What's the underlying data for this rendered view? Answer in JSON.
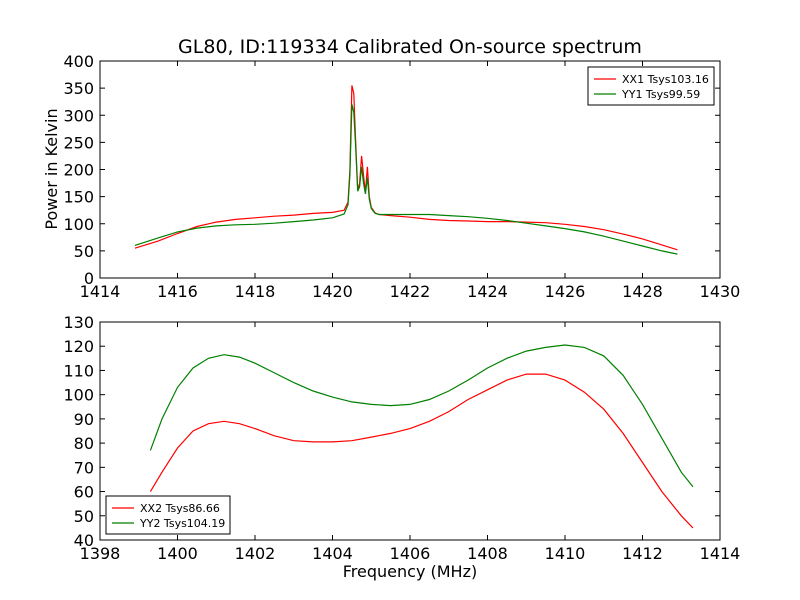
{
  "chart_data": [
    {
      "type": "line",
      "title": "GL80, ID:119334 Calibrated On-source spectrum",
      "xlabel": "",
      "ylabel": "Power in Kelvin",
      "xlim": [
        1414,
        1430
      ],
      "ylim": [
        0,
        400
      ],
      "xticks": [
        "1414",
        "1416",
        "1418",
        "1420",
        "1422",
        "1424",
        "1426",
        "1428",
        "1430"
      ],
      "yticks": [
        "0",
        "50",
        "100",
        "150",
        "200",
        "250",
        "300",
        "350",
        "400"
      ],
      "legend_position": "top-right",
      "series": [
        {
          "name": "XX1 Tsys103.16",
          "color": "#ff0000",
          "x": [
            1414.9,
            1415.5,
            1416.0,
            1416.5,
            1417.0,
            1417.5,
            1418.0,
            1418.5,
            1419.0,
            1419.5,
            1420.0,
            1420.3,
            1420.4,
            1420.45,
            1420.5,
            1420.55,
            1420.6,
            1420.65,
            1420.7,
            1420.75,
            1420.8,
            1420.85,
            1420.9,
            1420.95,
            1421.0,
            1421.1,
            1421.2,
            1421.5,
            1422.0,
            1422.5,
            1423.0,
            1423.5,
            1424.0,
            1424.5,
            1425.0,
            1425.5,
            1426.0,
            1426.5,
            1427.0,
            1427.5,
            1428.0,
            1428.5,
            1428.9
          ],
          "y": [
            55,
            68,
            82,
            95,
            103,
            108,
            111,
            114,
            116,
            119,
            121,
            125,
            140,
            200,
            355,
            340,
            250,
            162,
            175,
            225,
            190,
            158,
            205,
            150,
            130,
            120,
            117,
            115,
            112,
            108,
            106,
            105,
            104,
            104,
            103,
            102,
            99,
            95,
            89,
            81,
            72,
            61,
            52
          ]
        },
        {
          "name": "YY1 Tsys99.59",
          "color": "#008000",
          "x": [
            1414.9,
            1415.5,
            1416.0,
            1416.5,
            1417.0,
            1417.5,
            1418.0,
            1418.5,
            1419.0,
            1419.5,
            1420.0,
            1420.3,
            1420.4,
            1420.45,
            1420.5,
            1420.55,
            1420.6,
            1420.65,
            1420.7,
            1420.75,
            1420.8,
            1420.85,
            1420.9,
            1420.95,
            1421.0,
            1421.1,
            1421.2,
            1421.5,
            1422.0,
            1422.5,
            1423.0,
            1423.5,
            1424.0,
            1424.5,
            1425.0,
            1425.5,
            1426.0,
            1426.5,
            1427.0,
            1427.5,
            1428.0,
            1428.5,
            1428.9
          ],
          "y": [
            60,
            74,
            85,
            92,
            96,
            98,
            99,
            101,
            104,
            107,
            111,
            118,
            135,
            190,
            320,
            305,
            240,
            160,
            168,
            205,
            175,
            155,
            185,
            145,
            128,
            119,
            117,
            117,
            117,
            117,
            115,
            113,
            110,
            106,
            101,
            96,
            91,
            85,
            77,
            68,
            59,
            50,
            44
          ]
        }
      ]
    },
    {
      "type": "line",
      "title": "",
      "xlabel": "Frequency (MHz)",
      "ylabel": "",
      "xlim": [
        1398,
        1414
      ],
      "ylim": [
        40,
        130
      ],
      "xticks": [
        "1398",
        "1400",
        "1402",
        "1404",
        "1406",
        "1408",
        "1410",
        "1412",
        "1414"
      ],
      "yticks": [
        "40",
        "50",
        "60",
        "70",
        "80",
        "90",
        "100",
        "110",
        "120",
        "130"
      ],
      "legend_position": "bottom-left",
      "series": [
        {
          "name": "XX2 Tsys86.66",
          "color": "#ff0000",
          "x": [
            1399.3,
            1399.6,
            1400.0,
            1400.4,
            1400.8,
            1401.2,
            1401.6,
            1402.0,
            1402.5,
            1403.0,
            1403.5,
            1404.0,
            1404.5,
            1405.0,
            1405.5,
            1406.0,
            1406.5,
            1407.0,
            1407.5,
            1408.0,
            1408.5,
            1409.0,
            1409.5,
            1410.0,
            1410.5,
            1411.0,
            1411.5,
            1412.0,
            1412.5,
            1413.0,
            1413.3
          ],
          "y": [
            60,
            68,
            78,
            85,
            88,
            89,
            88,
            86,
            83,
            81,
            80.5,
            80.5,
            81,
            82.5,
            84,
            86,
            89,
            93,
            98,
            102,
            106,
            108.5,
            108.5,
            106,
            101,
            94,
            84,
            72,
            60,
            50,
            45
          ]
        },
        {
          "name": "YY2 Tsys104.19",
          "color": "#008000",
          "x": [
            1399.3,
            1399.6,
            1400.0,
            1400.4,
            1400.8,
            1401.2,
            1401.6,
            1402.0,
            1402.5,
            1403.0,
            1403.5,
            1404.0,
            1404.5,
            1405.0,
            1405.5,
            1406.0,
            1406.5,
            1407.0,
            1407.5,
            1408.0,
            1408.5,
            1409.0,
            1409.5,
            1410.0,
            1410.5,
            1411.0,
            1411.5,
            1412.0,
            1412.5,
            1413.0,
            1413.3
          ],
          "y": [
            77,
            90,
            103,
            111,
            115,
            116.5,
            115.5,
            113,
            109,
            105,
            101.5,
            99,
            97,
            96,
            95.5,
            96,
            98,
            101.5,
            106,
            111,
            115,
            118,
            119.5,
            120.5,
            119.5,
            116,
            108,
            96,
            82,
            68,
            62
          ]
        }
      ]
    }
  ]
}
